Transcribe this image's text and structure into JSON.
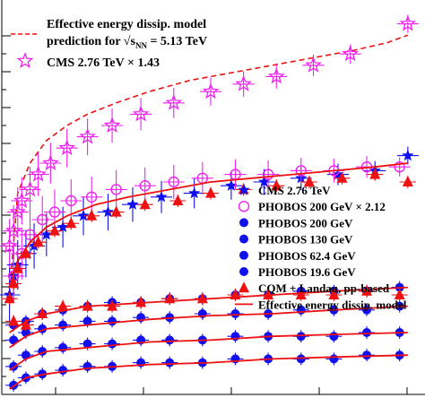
{
  "colors": {
    "red": "#ee1111",
    "blue": "#1111ee",
    "magenta": "#ee22ee",
    "black": "#000000"
  },
  "legend_top": {
    "model_line1": "Effective energy dissip. model",
    "model_line2_prefix": "prediction for √s",
    "model_line2_sub": "NN",
    "model_line2_suffix": " = 5.13 TeV",
    "cms_scaled": "CMS 2.76 TeV × 1.43"
  },
  "legend_main": [
    {
      "label": "CMS 2.76 TeV",
      "marker": "blue-star"
    },
    {
      "label": "PHOBOS 200 GeV × 2.12",
      "marker": "magenta-open-circle"
    },
    {
      "label": "PHOBOS 200 GeV",
      "marker": "blue-circle"
    },
    {
      "label": "PHOBOS 130 GeV",
      "marker": "blue-circle"
    },
    {
      "label": "PHOBOS 62.4 GeV",
      "marker": "blue-circle"
    },
    {
      "label": "PHOBOS 19.6 GeV",
      "marker": "blue-circle"
    },
    {
      "label": "CQM + Landau, pp-based",
      "marker": "red-triangle"
    },
    {
      "label": "Effective energy dissip. model",
      "marker": "red-line"
    }
  ],
  "chart_data": {
    "type": "scatter",
    "title": "",
    "xlabel": "",
    "ylabel": "",
    "xlim": [
      0,
      100
    ],
    "ylim": [
      0,
      100
    ],
    "note": "axis tick labels are not visible in the image; values are relative positions on the visible axes",
    "x": [
      1,
      2,
      3,
      4,
      6,
      8,
      11,
      15,
      19,
      24,
      29,
      35,
      41,
      47,
      53,
      59,
      66,
      73,
      80,
      87,
      93,
      98
    ],
    "series": [
      {
        "name": "Effective energy dissip. model prediction for √sNN = 5.13 TeV",
        "kind": "dashed-line",
        "color": "red",
        "x": [
          1,
          3,
          6,
          10,
          15,
          20,
          27,
          35,
          45,
          55,
          65,
          75,
          85,
          93,
          98
        ],
        "y": [
          25,
          52,
          60,
          66,
          70,
          73,
          76,
          79,
          82,
          84,
          86,
          88,
          90,
          92,
          94
        ]
      },
      {
        "name": "CMS 2.76 TeV × 1.43",
        "kind": "open-star",
        "color": "magenta",
        "x": [
          1,
          2,
          3,
          4,
          6,
          8,
          11,
          15,
          20,
          26,
          33,
          41,
          50,
          58,
          66,
          75,
          84,
          98
        ],
        "y": [
          38,
          42,
          47,
          50,
          53,
          57,
          60,
          64,
          67,
          70,
          73,
          76,
          79,
          81,
          83,
          86,
          89,
          97
        ]
      },
      {
        "name": "CMS 2.76 TeV",
        "kind": "star",
        "color": "blue",
        "x": [
          1,
          2,
          3,
          5,
          7,
          10,
          14,
          19,
          25,
          31,
          38,
          46,
          55,
          63,
          72,
          81,
          90,
          98
        ],
        "y": [
          25,
          30,
          33,
          36,
          38,
          41,
          43,
          46,
          47,
          49,
          51,
          52,
          54,
          55,
          56,
          57,
          58,
          62
        ]
      },
      {
        "name": "PHOBOS 200 GeV × 2.12",
        "kind": "open-circle",
        "color": "magenta",
        "x": [
          2,
          4,
          6,
          9,
          12,
          16,
          21,
          27,
          34,
          41,
          48,
          56,
          64,
          72,
          80,
          88,
          96
        ],
        "y": [
          30,
          36,
          41,
          45,
          47,
          50,
          51,
          53,
          54,
          55,
          56,
          57,
          57,
          58,
          58,
          59,
          59
        ]
      },
      {
        "name": "CQM + Landau, pp-based (upper)",
        "kind": "triangle",
        "color": "red",
        "x": [
          1,
          2,
          3,
          5,
          8,
          12,
          16,
          21,
          27,
          34,
          42,
          50,
          58,
          66,
          74,
          82,
          90,
          98
        ],
        "y": [
          24,
          28,
          32,
          36,
          39,
          42,
          44,
          46,
          47,
          49,
          50,
          52,
          53,
          54,
          55,
          56,
          57,
          55
        ]
      },
      {
        "name": "Effective energy dissip. model (upper)",
        "kind": "line",
        "color": "red",
        "x": [
          1,
          3,
          6,
          10,
          15,
          22,
          30,
          40,
          50,
          60,
          70,
          80,
          90,
          98
        ],
        "y": [
          27,
          34,
          39,
          43,
          46,
          49,
          51,
          53,
          55,
          56,
          57,
          58,
          59,
          60
        ]
      },
      {
        "name": "PHOBOS 200 GeV",
        "kind": "circle",
        "color": "blue",
        "x": [
          2,
          5,
          9,
          14,
          20,
          26,
          33,
          40,
          48,
          56,
          64,
          72,
          80,
          88,
          96
        ],
        "y": [
          17,
          18,
          20,
          21,
          22,
          23,
          23,
          24,
          24,
          25,
          25,
          26,
          26,
          26,
          27
        ]
      },
      {
        "name": "PHOBOS 130 GeV",
        "kind": "circle",
        "color": "blue",
        "x": [
          2,
          5,
          9,
          14,
          20,
          26,
          33,
          40,
          48,
          56,
          64,
          72,
          80,
          88,
          96
        ],
        "y": [
          13,
          15,
          16,
          17,
          18,
          18,
          19,
          19,
          20,
          20,
          20,
          21,
          21,
          21,
          22
        ]
      },
      {
        "name": "PHOBOS 62.4 GeV",
        "kind": "circle",
        "color": "blue",
        "x": [
          2,
          5,
          9,
          14,
          20,
          26,
          33,
          40,
          48,
          56,
          64,
          72,
          80,
          88,
          96
        ],
        "y": [
          6,
          9,
          10,
          11,
          12,
          12,
          13,
          13,
          13,
          14,
          14,
          14,
          14,
          15,
          15
        ]
      },
      {
        "name": "PHOBOS 19.6 GeV",
        "kind": "circle",
        "color": "blue",
        "x": [
          2,
          5,
          9,
          14,
          20,
          26,
          33,
          40,
          48,
          56,
          64,
          72,
          80,
          88,
          96
        ],
        "y": [
          1,
          3,
          4,
          5,
          6,
          6,
          7,
          7,
          7,
          8,
          8,
          8,
          8,
          9,
          9
        ]
      },
      {
        "name": "CQM + Landau, pp-based (lower)",
        "kind": "triangle",
        "color": "red",
        "x": [
          2,
          5,
          9,
          14,
          20,
          26,
          33,
          40,
          48,
          56,
          64,
          72,
          80,
          88,
          96
        ],
        "y": [
          18,
          17,
          20,
          22,
          22,
          22,
          23,
          24,
          24,
          25,
          25,
          25,
          25,
          26,
          25
        ]
      },
      {
        "name": "Effective energy dissip. model (lower bands)",
        "kind": "line",
        "color": "red",
        "bands": [
          [
            [
              1,
              15
            ],
            [
              5,
              18
            ],
            [
              10,
              20
            ],
            [
              20,
              22
            ],
            [
              35,
              23
            ],
            [
              50,
              24
            ],
            [
              65,
              25
            ],
            [
              80,
              26
            ],
            [
              98,
              27
            ]
          ],
          [
            [
              1,
              11
            ],
            [
              5,
              14
            ],
            [
              10,
              16
            ],
            [
              20,
              17
            ],
            [
              35,
              18.5
            ],
            [
              50,
              19.5
            ],
            [
              65,
              20
            ],
            [
              80,
              21
            ],
            [
              98,
              22
            ]
          ],
          [
            [
              1,
              5
            ],
            [
              5,
              8
            ],
            [
              10,
              10
            ],
            [
              20,
              11
            ],
            [
              35,
              12.5
            ],
            [
              50,
              13
            ],
            [
              65,
              14
            ],
            [
              80,
              14.5
            ],
            [
              98,
              15
            ]
          ],
          [
            [
              1,
              0
            ],
            [
              5,
              3
            ],
            [
              10,
              4
            ],
            [
              20,
              5.5
            ],
            [
              35,
              6.5
            ],
            [
              50,
              7
            ],
            [
              65,
              8
            ],
            [
              80,
              8.5
            ],
            [
              98,
              9
            ]
          ]
        ]
      }
    ]
  }
}
